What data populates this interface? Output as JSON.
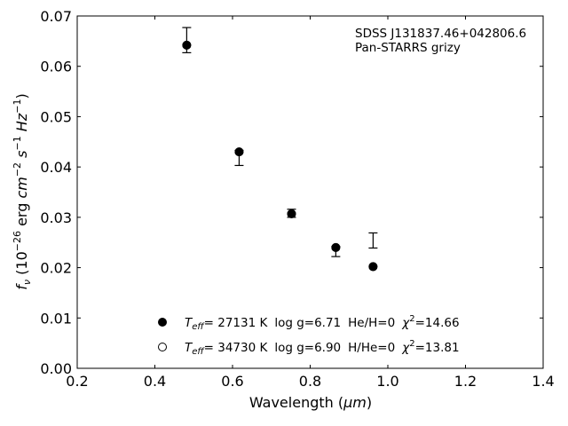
{
  "chart_data": {
    "type": "scatter",
    "title": "",
    "xlabel_prefix": "Wavelength (",
    "xlabel_unit": "μm",
    "xlabel_suffix": ")",
    "ylabel": "f_ν (10^-26 erg cm^-2 s^-1 Hz^-1)",
    "xlim": [
      0.2,
      1.4
    ],
    "ylim": [
      0.0,
      0.07
    ],
    "xticks": [
      "0.2",
      "0.4",
      "0.6",
      "0.8",
      "1.0",
      "1.2",
      "1.4"
    ],
    "yticks": [
      "0.00",
      "0.01",
      "0.02",
      "0.03",
      "0.04",
      "0.05",
      "0.06",
      "0.07"
    ],
    "annotation_lines": [
      "SDSS J131837.46+042806.6",
      "Pan-STARRS grizy"
    ],
    "observed": [
      {
        "x": 0.482,
        "y": 0.0652,
        "yerr": 0.0025
      },
      {
        "x": 0.617,
        "y": 0.0418,
        "yerr": 0.0015
      },
      {
        "x": 0.752,
        "y": 0.0308,
        "yerr": 0.0008
      },
      {
        "x": 0.866,
        "y": 0.0232,
        "yerr": 0.001
      },
      {
        "x": 0.962,
        "y": 0.0254,
        "yerr": 0.0015
      }
    ],
    "series": [
      {
        "marker": "filled",
        "points": [
          {
            "x": 0.482,
            "y": 0.0642
          },
          {
            "x": 0.617,
            "y": 0.043
          },
          {
            "x": 0.752,
            "y": 0.0307
          },
          {
            "x": 0.866,
            "y": 0.024
          },
          {
            "x": 0.962,
            "y": 0.0202
          }
        ]
      },
      {
        "marker": "open",
        "points": [
          {
            "x": 0.482,
            "y": 0.0642
          },
          {
            "x": 0.617,
            "y": 0.043
          },
          {
            "x": 0.752,
            "y": 0.0307
          },
          {
            "x": 0.866,
            "y": 0.024
          },
          {
            "x": 0.962,
            "y": 0.0202
          }
        ]
      }
    ],
    "legend": {
      "placement": "lower-center",
      "entries": [
        {
          "marker": "filled",
          "teff": "= 27131 K",
          "logg": "log g=6.71",
          "comp": "He/H=0",
          "chi": "=14.66"
        },
        {
          "marker": "open",
          "teff": "= 34730 K",
          "logg": "log g=6.90",
          "comp": "H/He=0",
          "chi": "=13.81"
        }
      ]
    },
    "grid": false
  }
}
